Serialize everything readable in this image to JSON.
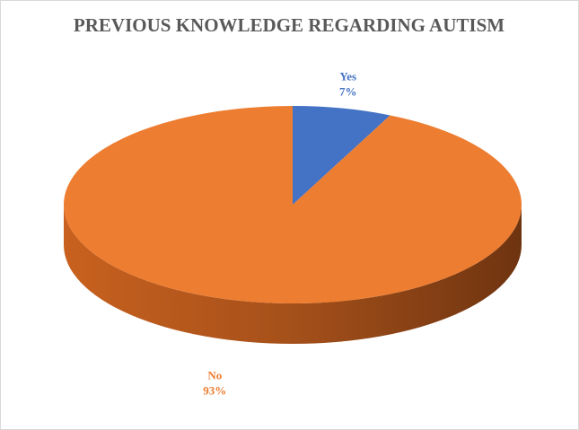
{
  "chart_data": {
    "type": "pie",
    "title": "PREVIOUS KNOWLEDGE REGARDING AUTISM",
    "categories": [
      "Yes",
      "No"
    ],
    "values": [
      7,
      93
    ],
    "value_labels": [
      "7%",
      "93%"
    ],
    "colors": [
      "#4472c4",
      "#ed7d31"
    ]
  }
}
